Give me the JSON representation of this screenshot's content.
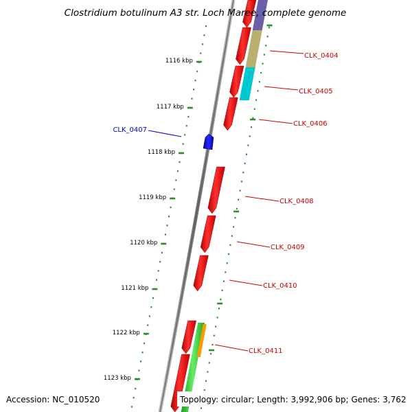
{
  "title": "Clostridium botulinum A3 str. Loch Maree, complete genome",
  "footer": {
    "accession": "Accession: NC_010520",
    "summary": "Topology: circular; Length: 3,992,906 bp; Genes: 3,762"
  },
  "ticks": [
    {
      "label": "1116 kbp",
      "kbp": 1116
    },
    {
      "label": "1117 kbp",
      "kbp": 1117
    },
    {
      "label": "1118 kbp",
      "kbp": 1118
    },
    {
      "label": "1119 kbp",
      "kbp": 1119
    },
    {
      "label": "1120 kbp",
      "kbp": 1120
    },
    {
      "label": "1121 kbp",
      "kbp": 1121
    },
    {
      "label": "1122 kbp",
      "kbp": 1122
    },
    {
      "label": "1123 kbp",
      "kbp": 1123
    }
  ],
  "genes": [
    {
      "label": "CLK_0404",
      "strand": "forward"
    },
    {
      "label": "CLK_0405",
      "strand": "forward"
    },
    {
      "label": "CLK_0406",
      "strand": "forward"
    },
    {
      "label": "CLK_0407",
      "strand": "reverse"
    },
    {
      "label": "CLK_0408",
      "strand": "forward"
    },
    {
      "label": "CLK_0409",
      "strand": "forward"
    },
    {
      "label": "CLK_0410",
      "strand": "forward"
    },
    {
      "label": "CLK_0411",
      "strand": "forward"
    }
  ],
  "colors": {
    "backbone": "#8a8a8a",
    "forward_cds": "#ff0000",
    "reverse_cds": "#0000ff",
    "forward_label": "#cc0000",
    "reverse_label": "#0000cc",
    "scale_dots": "#2e8b2e",
    "cog_purple": "#6a5fa8",
    "cog_olive": "#b8b070",
    "cog_cyan": "#00c8d2",
    "cog_green": "#33cc33",
    "cog_orange": "#ff9900"
  }
}
